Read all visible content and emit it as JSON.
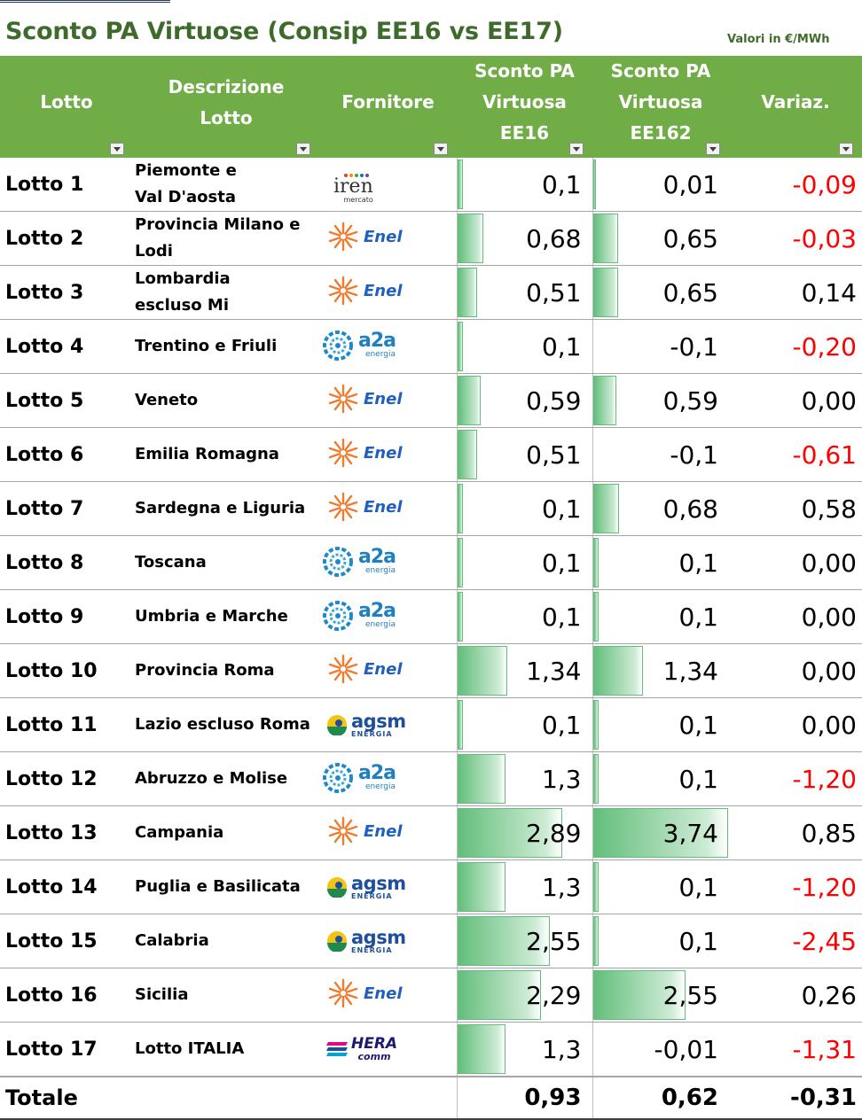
{
  "title": "Sconto PA Virtuose (Consip EE16 vs EE17)",
  "units": "Valori in €/MWh",
  "headers": {
    "lotto": "Lotto",
    "descrizione": [
      "Descrizione",
      "Lotto"
    ],
    "fornitore": "Fornitore",
    "ee16": [
      "Sconto PA",
      "Virtuosa",
      "EE16"
    ],
    "ee17": [
      "Sconto PA",
      "Virtuosa",
      "EE162"
    ],
    "variaz": "Variaz."
  },
  "colors": {
    "header_bg": "#70ad47",
    "title": "#3e6b2b",
    "bar": "#63be7b",
    "negative": "#ff0000"
  },
  "bar_max": 3.74,
  "rows": [
    {
      "lotto": "Lotto 1",
      "desc": [
        "Piemonte e",
        "Val D'aosta"
      ],
      "fornitore": "iren",
      "ee16": "0,1",
      "ee16_v": 0.1,
      "ee17": "0,01",
      "ee17_v": 0.01,
      "variaz": "-0,09",
      "neg": true
    },
    {
      "lotto": "Lotto 2",
      "desc": [
        "Provincia Milano e",
        "Lodi"
      ],
      "fornitore": "enel",
      "ee16": "0,68",
      "ee16_v": 0.68,
      "ee17": "0,65",
      "ee17_v": 0.65,
      "variaz": "-0,03",
      "neg": true
    },
    {
      "lotto": "Lotto 3",
      "desc": [
        "Lombardia",
        "escluso Mi"
      ],
      "fornitore": "enel",
      "ee16": "0,51",
      "ee16_v": 0.51,
      "ee17": "0,65",
      "ee17_v": 0.65,
      "variaz": "0,14",
      "neg": false
    },
    {
      "lotto": "Lotto 4",
      "desc": [
        "Trentino e Friuli"
      ],
      "fornitore": "a2a",
      "ee16": "0,1",
      "ee16_v": 0.1,
      "ee17": "-0,1",
      "ee17_v": -0.1,
      "variaz": "-0,20",
      "neg": true
    },
    {
      "lotto": "Lotto 5",
      "desc": [
        "Veneto"
      ],
      "fornitore": "enel",
      "ee16": "0,59",
      "ee16_v": 0.59,
      "ee17": "0,59",
      "ee17_v": 0.59,
      "variaz": "0,00",
      "neg": false
    },
    {
      "lotto": "Lotto 6",
      "desc": [
        "Emilia Romagna"
      ],
      "fornitore": "enel",
      "ee16": "0,51",
      "ee16_v": 0.51,
      "ee17": "-0,1",
      "ee17_v": -0.1,
      "variaz": "-0,61",
      "neg": true
    },
    {
      "lotto": "Lotto 7",
      "desc": [
        "Sardegna e Liguria"
      ],
      "fornitore": "enel",
      "ee16": "0,1",
      "ee16_v": 0.1,
      "ee17": "0,68",
      "ee17_v": 0.68,
      "variaz": "0,58",
      "neg": false
    },
    {
      "lotto": "Lotto 8",
      "desc": [
        "Toscana"
      ],
      "fornitore": "a2a",
      "ee16": "0,1",
      "ee16_v": 0.1,
      "ee17": "0,1",
      "ee17_v": 0.1,
      "variaz": "0,00",
      "neg": false
    },
    {
      "lotto": "Lotto 9",
      "desc": [
        "Umbria e Marche"
      ],
      "fornitore": "a2a",
      "ee16": "0,1",
      "ee16_v": 0.1,
      "ee17": "0,1",
      "ee17_v": 0.1,
      "variaz": "0,00",
      "neg": false
    },
    {
      "lotto": "Lotto 10",
      "desc": [
        "Provincia Roma"
      ],
      "fornitore": "enel",
      "ee16": "1,34",
      "ee16_v": 1.34,
      "ee17": "1,34",
      "ee17_v": 1.34,
      "variaz": "0,00",
      "neg": false
    },
    {
      "lotto": "Lotto 11",
      "desc": [
        "Lazio escluso Roma"
      ],
      "fornitore": "agsm",
      "ee16": "0,1",
      "ee16_v": 0.1,
      "ee17": "0,1",
      "ee17_v": 0.1,
      "variaz": "0,00",
      "neg": false
    },
    {
      "lotto": "Lotto 12",
      "desc": [
        "Abruzzo e Molise"
      ],
      "fornitore": "a2a",
      "ee16": "1,3",
      "ee16_v": 1.3,
      "ee17": "0,1",
      "ee17_v": 0.1,
      "variaz": "-1,20",
      "neg": true
    },
    {
      "lotto": "Lotto 13",
      "desc": [
        "Campania"
      ],
      "fornitore": "enel",
      "ee16": "2,89",
      "ee16_v": 2.89,
      "ee17": "3,74",
      "ee17_v": 3.74,
      "variaz": "0,85",
      "neg": false
    },
    {
      "lotto": "Lotto 14",
      "desc": [
        "Puglia e Basilicata"
      ],
      "fornitore": "agsm",
      "ee16": "1,3",
      "ee16_v": 1.3,
      "ee17": "0,1",
      "ee17_v": 0.1,
      "variaz": "-1,20",
      "neg": true
    },
    {
      "lotto": "Lotto 15",
      "desc": [
        "Calabria"
      ],
      "fornitore": "agsm",
      "ee16": "2,55",
      "ee16_v": 2.55,
      "ee17": "0,1",
      "ee17_v": 0.1,
      "variaz": "-2,45",
      "neg": true
    },
    {
      "lotto": "Lotto 16",
      "desc": [
        "Sicilia"
      ],
      "fornitore": "enel",
      "ee16": "2,29",
      "ee16_v": 2.29,
      "ee17": "2,55",
      "ee17_v": 2.55,
      "variaz": "0,26",
      "neg": false
    },
    {
      "lotto": "Lotto 17",
      "desc": [
        "Lotto ITALIA"
      ],
      "fornitore": "hera",
      "ee16": "1,3",
      "ee16_v": 1.3,
      "ee17": "-0,01",
      "ee17_v": -0.01,
      "variaz": "-1,31",
      "neg": true
    }
  ],
  "logos": {
    "iren": {
      "text": "iren",
      "sub": "mercato"
    },
    "enel": {
      "text": "Enel"
    },
    "a2a": {
      "text": "a2a",
      "sub": "energia"
    },
    "agsm": {
      "text": "agsm",
      "sub": "ENERGIA"
    },
    "hera": {
      "text": "HERA",
      "sub": "comm"
    }
  },
  "totale": {
    "label": "Totale",
    "ee16": "0,93",
    "ee17": "0,62",
    "variaz": "-0,31"
  }
}
